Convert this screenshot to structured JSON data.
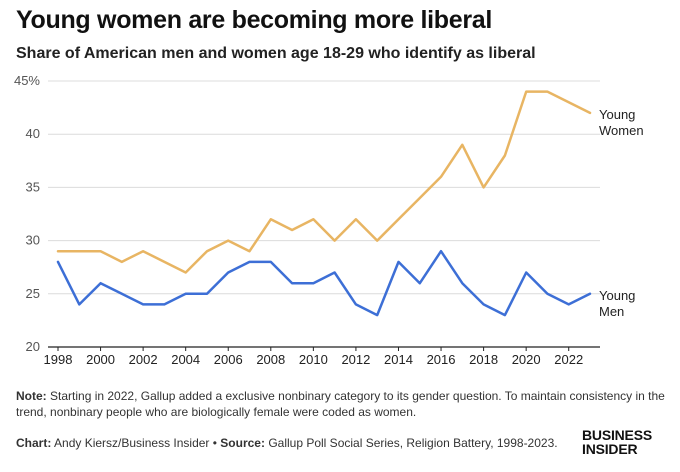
{
  "header": {
    "title": "Young women are becoming more liberal",
    "subtitle": "Share of American men and women age 18-29 who identify as liberal"
  },
  "chart_data": {
    "type": "line",
    "title": "Young women are becoming more liberal",
    "subtitle": "Share of American men and women age 18-29 who identify as liberal",
    "xlabel": "",
    "ylabel": "",
    "x": [
      1998,
      1999,
      2000,
      2001,
      2002,
      2003,
      2004,
      2005,
      2006,
      2007,
      2008,
      2009,
      2010,
      2011,
      2012,
      2013,
      2014,
      2015,
      2016,
      2017,
      2018,
      2019,
      2020,
      2021,
      2022,
      2023
    ],
    "xlim": [
      1998,
      2023
    ],
    "ylim": [
      20,
      45
    ],
    "x_ticks": [
      "1998",
      "2000",
      "2002",
      "2004",
      "2006",
      "2008",
      "2010",
      "2012",
      "2014",
      "2016",
      "2018",
      "2020",
      "2022"
    ],
    "y_ticks": [
      "20",
      "25",
      "30",
      "35",
      "40",
      "45%"
    ],
    "grid": "horizontal",
    "series": [
      {
        "name_lines": [
          "Young",
          "Women"
        ],
        "color": "#E8B563",
        "values": [
          29,
          29,
          29,
          28,
          29,
          28,
          27,
          29,
          30,
          29,
          32,
          31,
          32,
          30,
          32,
          30,
          32,
          34,
          36,
          39,
          35,
          38,
          44,
          44,
          43,
          42
        ]
      },
      {
        "name_lines": [
          "Young",
          "Men"
        ],
        "color": "#3D6FD6",
        "values": [
          28,
          24,
          26,
          25,
          24,
          24,
          25,
          25,
          27,
          28,
          28,
          26,
          26,
          27,
          24,
          23,
          28,
          26,
          29,
          26,
          24,
          23,
          27,
          25,
          24,
          25
        ]
      }
    ]
  },
  "footer": {
    "note_label": "Note:",
    "note_text": " Starting in 2022, Gallup added a exclusive nonbinary category to its gender question. To maintain consistency in the trend, nonbinary people who are biologically female were coded as women.",
    "chart_label": "Chart:",
    "chart_text": " Andy Kiersz/Business Insider • ",
    "source_label": "Source:",
    "source_text": " Gallup Poll Social Series, Religion Battery, 1998-2023.",
    "logo_line1": "BUSINESS",
    "logo_line2": "INSIDER"
  }
}
